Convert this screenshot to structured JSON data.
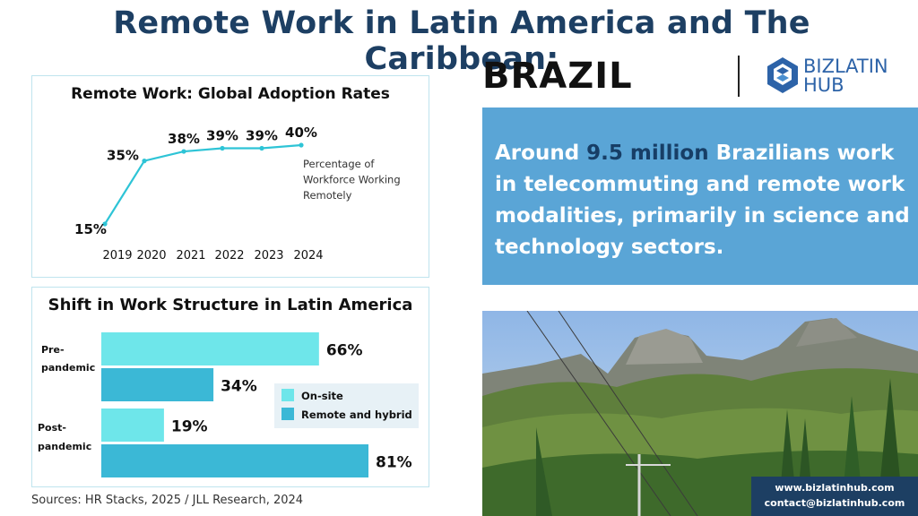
{
  "header": {
    "title": "Remote Work in Latin America and The Caribbean:",
    "country": "BRAZIL",
    "logo": {
      "line1": "BIZLATIN",
      "line2": "HUB"
    }
  },
  "info_box": {
    "prefix": "Around ",
    "highlight": "9.5 million",
    "suffix": " Brazilians work in telecommuting and remote work modalities, primarily in science and technology sectors."
  },
  "contact": {
    "website": "www.bizlatinhub.com",
    "email": "contact@bizlatinhub.com"
  },
  "sources": "Sources: HR Stacks, 2025 /  JLL Research, 2024",
  "colors": {
    "title": "#1d3f63",
    "accent_blue": "#5aa5d6",
    "line": "#2ec4d6",
    "onsite": "#6ee6ea",
    "remote": "#3bb8d6",
    "panel_border": "#bfe4ee",
    "contact_bg": "#1d3f63"
  },
  "chart_data": [
    {
      "type": "line",
      "title": "Remote Work: Global Adoption Rates",
      "x": [
        "2019",
        "2020",
        "2021",
        "2022",
        "2023",
        "2024"
      ],
      "values": [
        15,
        35,
        38,
        39,
        39,
        40
      ],
      "data_labels": [
        "15%",
        "35%",
        "38%",
        "39%",
        "39%",
        "40%"
      ],
      "annotation": "Percentage of Workforce Working Remotely",
      "ylim": [
        15,
        40
      ],
      "grid": false
    },
    {
      "type": "bar",
      "orientation": "horizontal",
      "title": "Shift in Work Structure in Latin America",
      "categories": [
        "Pre-pandemic",
        "Post-pandemic"
      ],
      "series": [
        {
          "name": "On-site",
          "values": [
            66,
            19
          ],
          "labels": [
            "66%",
            "19%"
          ]
        },
        {
          "name": "Remote and hybrid",
          "values": [
            34,
            81
          ],
          "labels": [
            "34%",
            "81%"
          ]
        }
      ],
      "xlim": [
        0,
        81
      ],
      "legend": "right",
      "grid": false
    }
  ]
}
